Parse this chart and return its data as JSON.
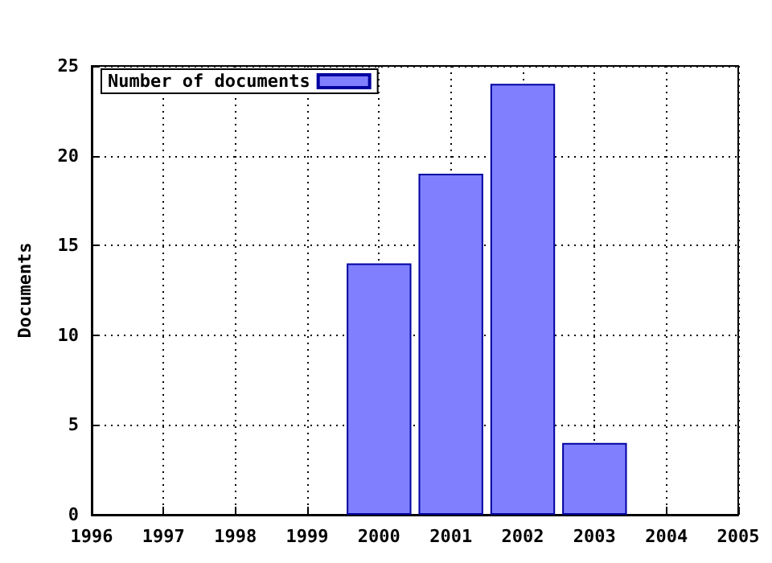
{
  "chart_data": {
    "type": "bar",
    "ylabel": "Documents",
    "x": [
      2000,
      2001,
      2002,
      2003
    ],
    "series": [
      {
        "name": "Number of documents",
        "color": "#8080ff",
        "values": [
          14,
          19,
          24,
          4
        ]
      }
    ],
    "xlim": [
      1996,
      2005
    ],
    "xticks": [
      1996,
      1997,
      1998,
      1999,
      2000,
      2001,
      2002,
      2003,
      2004,
      2005
    ],
    "ylim": [
      0,
      25
    ],
    "yticks": [
      0,
      5,
      10,
      15,
      20,
      25
    ],
    "grid": true,
    "legend": "top left"
  }
}
